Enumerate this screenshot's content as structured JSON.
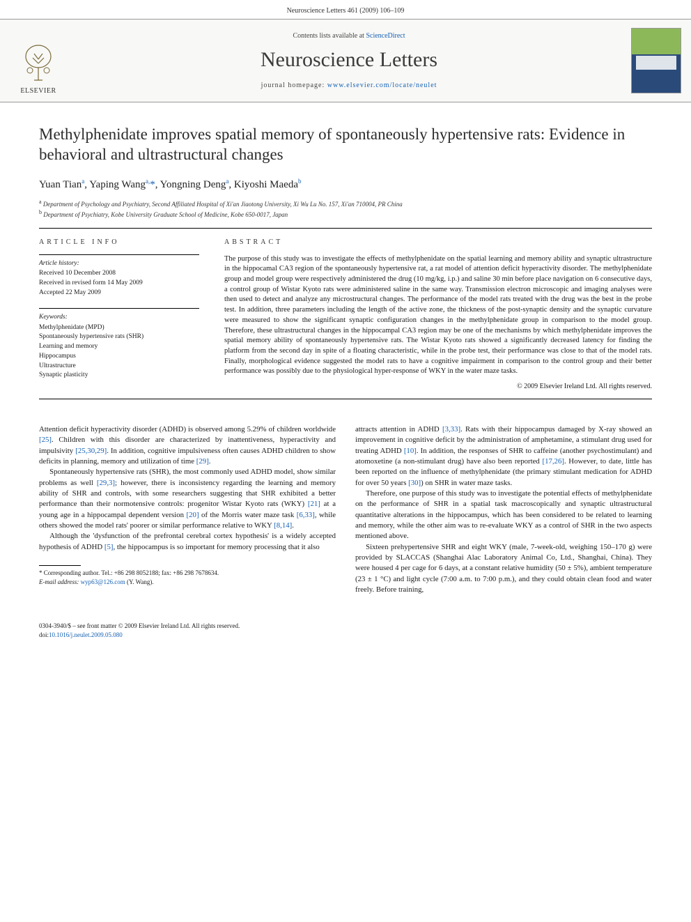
{
  "header": {
    "citation": "Neuroscience Letters 461 (2009) 106–109"
  },
  "masthead": {
    "contents_prefix": "Contents lists available at ",
    "contents_link": "ScienceDirect",
    "journal": "Neuroscience Letters",
    "homepage_prefix": "journal homepage: ",
    "homepage_url": "www.elsevier.com/locate/neulet",
    "publisher": "ELSEVIER"
  },
  "article": {
    "title": "Methylphenidate improves spatial memory of spontaneously hypertensive rats: Evidence in behavioral and ultrastructural changes",
    "authors_html": "Yuan Tian<sup>a</sup>, Yaping Wang<sup>a,</sup><span class='star'>*</span>, Yongning Deng<sup>a</sup>, Kiyoshi Maeda<sup>b</sup>",
    "affiliations": [
      "a Department of Psychology and Psychiatry, Second Affiliated Hospital of Xi'an Jiaotong University, Xi Wu Lu No. 157, Xi'an 710004, PR China",
      "b Department of Psychiatry, Kobe University Graduate School of Medicine, Kobe 650-0017, Japan"
    ]
  },
  "info": {
    "label": "ARTICLE INFO",
    "history_heading": "Article history:",
    "history": [
      "Received 10 December 2008",
      "Received in revised form 14 May 2009",
      "Accepted 22 May 2009"
    ],
    "keywords_heading": "Keywords:",
    "keywords": [
      "Methylphenidate (MPD)",
      "Spontaneously hypertensive rats (SHR)",
      "Learning and memory",
      "Hippocampus",
      "Ultrastructure",
      "Synaptic plasticity"
    ]
  },
  "abstract": {
    "label": "ABSTRACT",
    "text": "The purpose of this study was to investigate the effects of methylphenidate on the spatial learning and memory ability and synaptic ultrastructure in the hippocamal CA3 region of the spontaneously hypertensive rat, a rat model of attention deficit hyperactivity disorder. The methylphenidate group and model group were respectively administered the drug (10 mg/kg, i.p.) and saline 30 min before place navigation on 6 consecutive days, a control group of Wistar Kyoto rats were administered saline in the same way. Transmission electron microscopic and imaging analyses were then used to detect and analyze any microstructural changes. The performance of the model rats treated with the drug was the best in the probe test. In addition, three parameters including the length of the active zone, the thickness of the post-synaptic density and the synaptic curvature were measured to show the significant synaptic configuration changes in the methylphenidate group in comparison to the model group. Therefore, these ultrastructural changes in the hippocampal CA3 region may be one of the mechanisms by which methylphenidate improves the spatial memory ability of spontaneously hypertensive rats. The Wistar Kyoto rats showed a significantly decreased latency for finding the platform from the second day in spite of a floating characteristic, while in the probe test, their performance was close to that of the model rats. Finally, morphological evidence suggested the model rats to have a cognitive impairment in comparison to the control group and their better performance was possibly due to the physiological hyper-response of WKY in the water maze tasks.",
    "copyright": "© 2009 Elsevier Ireland Ltd. All rights reserved."
  },
  "body": {
    "p1": "Attention deficit hyperactivity disorder (ADHD) is observed among 5.29% of children worldwide [25]. Children with this disorder are characterized by inattentiveness, hyperactivity and impulsivity [25,30,29]. In addition, cognitive impulsiveness often causes ADHD children to show deficits in planning, memory and utilization of time [29].",
    "p2": "Spontaneously hypertensive rats (SHR), the most commonly used ADHD model, show similar problems as well [29,3]; however, there is inconsistency regarding the learning and memory ability of SHR and controls, with some researchers suggesting that SHR exhibited a better performance than their normotensive controls: progenitor Wistar Kyoto rats (WKY) [21] at a young age in a hippocampal dependent version [20] of the Morris water maze task [6,33], while others showed the model rats' poorer or similar performance relative to WKY [8,14].",
    "p3": "Although the 'dysfunction of the prefrontal cerebral cortex hypothesis' is a widely accepted hypothesis of ADHD [5], the hippocampus is so important for memory processing that it also",
    "p4": "attracts attention in ADHD [3,33]. Rats with their hippocampus damaged by X-ray showed an improvement in cognitive deficit by the administration of amphetamine, a stimulant drug used for treating ADHD [10]. In addition, the responses of SHR to caffeine (another psychostimulant) and atomoxetine (a non-stimulant drug) have also been reported [17,26]. However, to date, little has been reported on the influence of methylphenidate (the primary stimulant medication for ADHD for over 50 years [30]) on SHR in water maze tasks.",
    "p5": "Therefore, one purpose of this study was to investigate the potential effects of methylphenidate on the performance of SHR in a spatial task macroscopically and synaptic ultrastructural quantitative alterations in the hippocampus, which has been considered to be related to learning and memory, while the other aim was to re-evaluate WKY as a control of SHR in the two aspects mentioned above.",
    "p6": "Sixteen prehypertensive SHR and eight WKY (male, 7-week-old, weighing 150–170 g) were provided by SLACCAS (Shanghai Alac Laboratory Animal Co, Ltd., Shanghai, China). They were housed 4 per cage for 6 days, at a constant relative humidity (50 ± 5%), ambient temperature (23 ± 1 °C) and light cycle (7:00 a.m. to 7:00 p.m.), and they could obtain clean food and water freely. Before training,"
  },
  "footnote": {
    "corr": "* Corresponding author. Tel.: +86 298 8052188; fax: +86 298 7678634.",
    "email_label": "E-mail address: ",
    "email": "wyp63@126.com",
    "email_suffix": " (Y. Wang)."
  },
  "footer": {
    "issn": "0304-3940/$ – see front matter © 2009 Elsevier Ireland Ltd. All rights reserved.",
    "doi_label": "doi:",
    "doi": "10.1016/j.neulet.2009.05.080"
  },
  "colors": {
    "link": "#1560b3",
    "text": "#1a1a1a",
    "cover_top": "#8db85a",
    "cover_bottom": "#2a4a7a"
  }
}
